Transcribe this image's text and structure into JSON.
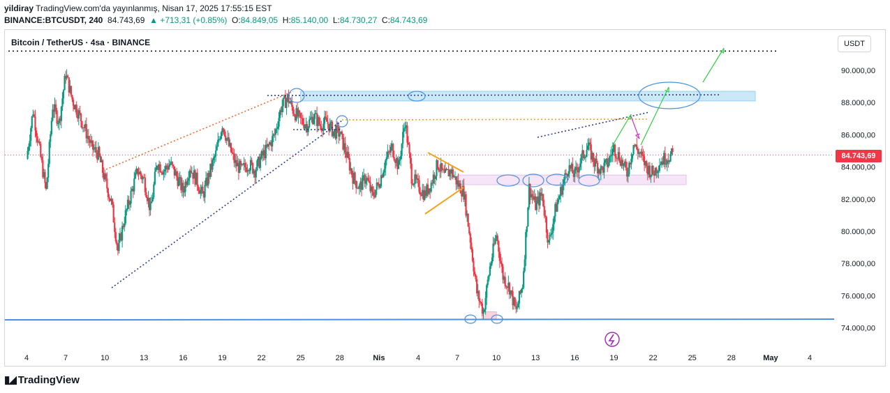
{
  "header": {
    "user": "yildiray",
    "published": "TradingView.com'da yayınlanmış, Nisan 17, 2025 17:55:15 EST",
    "symbol": "BINANCE:BTCUSDT, 240",
    "last": "84.743,69",
    "change": "▲ +713,31 (+0.85%)",
    "o_label": "O:",
    "o_value": "84.849,05",
    "h_label": "H:",
    "h_value": "85.140,00",
    "l_label": "L:",
    "l_value": "84.730,27",
    "c_label": "C:",
    "c_value": "84.743,69"
  },
  "chart_title": "Bitcoin / TetherUS · 4sa · BINANCE",
  "currency_button": "USDT",
  "price_tag": "84.743,69",
  "footer_brand": "TradingView",
  "colors": {
    "up": "#089981",
    "down": "#f23645",
    "support": "#4a90e2"
  },
  "chart_data": {
    "type": "candlestick",
    "y_ticks": [
      {
        "value": 90000,
        "label": "90.000,00"
      },
      {
        "value": 88000,
        "label": "88.000,00"
      },
      {
        "value": 86000,
        "label": "86.000,00"
      },
      {
        "value": 84000,
        "label": "84.000,00"
      },
      {
        "value": 82000,
        "label": "82.000,00"
      },
      {
        "value": 80000,
        "label": "80.000,00"
      },
      {
        "value": 78000,
        "label": "78.000,00"
      },
      {
        "value": 76000,
        "label": "76.000,00"
      },
      {
        "value": 74000,
        "label": "74.000,00"
      }
    ],
    "x_ticks": [
      "4",
      "7",
      "10",
      "13",
      "16",
      "19",
      "22",
      "25",
      "28",
      "Nis",
      "4",
      "7",
      "10",
      "13",
      "16",
      "19",
      "22",
      "25",
      "28",
      "May",
      "4"
    ],
    "x_tick_day_index": [
      0,
      3,
      6,
      9,
      12,
      15,
      18,
      21,
      24,
      27,
      30,
      33,
      36,
      39,
      42,
      45,
      48,
      51,
      54,
      57,
      60
    ],
    "ylim": [
      73200,
      92000
    ],
    "last_price": 84743.69,
    "support_level": 74500,
    "resistance_level": 91200,
    "zones": [
      {
        "name": "upper-resistance-zone",
        "y_low": 88100,
        "y_high": 88700
      },
      {
        "name": "mid-support-zone",
        "y_low": 82900,
        "y_high": 83500
      },
      {
        "name": "bottom-zone",
        "y_low": 74500,
        "y_high": 75000
      }
    ],
    "candles_close_path": [
      [
        0,
        84500
      ],
      [
        0.5,
        87500
      ],
      [
        1,
        85000
      ],
      [
        1.5,
        82500
      ],
      [
        2,
        87800
      ],
      [
        2.5,
        86800
      ],
      [
        3,
        89800
      ],
      [
        3.5,
        88200
      ],
      [
        4,
        87300
      ],
      [
        4.5,
        86300
      ],
      [
        5,
        85200
      ],
      [
        5.5,
        84800
      ],
      [
        6,
        83200
      ],
      [
        6.5,
        81800
      ],
      [
        7,
        78800
      ],
      [
        7.5,
        80800
      ],
      [
        8,
        82300
      ],
      [
        8.5,
        83800
      ],
      [
        9,
        83200
      ],
      [
        9.5,
        81300
      ],
      [
        10,
        84300
      ],
      [
        10.5,
        83800
      ],
      [
        11,
        84200
      ],
      [
        11.5,
        83400
      ],
      [
        12,
        82500
      ],
      [
        12.5,
        84000
      ],
      [
        13,
        83200
      ],
      [
        13.5,
        82200
      ],
      [
        14,
        83600
      ],
      [
        14.5,
        84800
      ],
      [
        15,
        86700
      ],
      [
        15.5,
        85300
      ],
      [
        16,
        84200
      ],
      [
        16.5,
        83800
      ],
      [
        17,
        84200
      ],
      [
        17.5,
        83800
      ],
      [
        18,
        84600
      ],
      [
        18.5,
        85200
      ],
      [
        19,
        86000
      ],
      [
        19.5,
        87700
      ],
      [
        20,
        88300
      ],
      [
        20.5,
        87400
      ],
      [
        21,
        86900
      ],
      [
        21.5,
        86600
      ],
      [
        22,
        87200
      ],
      [
        22.5,
        86600
      ],
      [
        23,
        86800
      ],
      [
        23.5,
        86200
      ],
      [
        24,
        86100
      ],
      [
        24.5,
        84800
      ],
      [
        25,
        83400
      ],
      [
        25.5,
        82700
      ],
      [
        26,
        83400
      ],
      [
        26.5,
        82200
      ],
      [
        27,
        83000
      ],
      [
        27.5,
        84400
      ],
      [
        28,
        85200
      ],
      [
        28.5,
        84000
      ],
      [
        29,
        86900
      ],
      [
        29.5,
        83400
      ],
      [
        30,
        82800
      ],
      [
        30.5,
        82300
      ],
      [
        31,
        83000
      ],
      [
        31.5,
        84200
      ],
      [
        32,
        83400
      ],
      [
        32.5,
        83800
      ],
      [
        33,
        83000
      ],
      [
        33.5,
        82400
      ],
      [
        34,
        79500
      ],
      [
        34.5,
        76200
      ],
      [
        35,
        75000
      ],
      [
        35.5,
        77800
      ],
      [
        36,
        79800
      ],
      [
        36.5,
        77200
      ],
      [
        37,
        76500
      ],
      [
        37.5,
        75000
      ],
      [
        38,
        76700
      ],
      [
        38.5,
        82700
      ],
      [
        39,
        81600
      ],
      [
        39.5,
        82300
      ],
      [
        40,
        79200
      ],
      [
        40.5,
        81300
      ],
      [
        41,
        82700
      ],
      [
        41.5,
        84000
      ],
      [
        42,
        83500
      ],
      [
        42.5,
        84500
      ],
      [
        43,
        85300
      ],
      [
        43.5,
        84300
      ],
      [
        44,
        83800
      ],
      [
        44.5,
        84200
      ],
      [
        45,
        85200
      ],
      [
        45.5,
        84500
      ],
      [
        46,
        83600
      ],
      [
        46.5,
        85400
      ],
      [
        47,
        84800
      ],
      [
        47.5,
        84000
      ],
      [
        48,
        83600
      ],
      [
        48.5,
        84300
      ],
      [
        49,
        84600
      ],
      [
        49.5,
        84744
      ]
    ]
  }
}
